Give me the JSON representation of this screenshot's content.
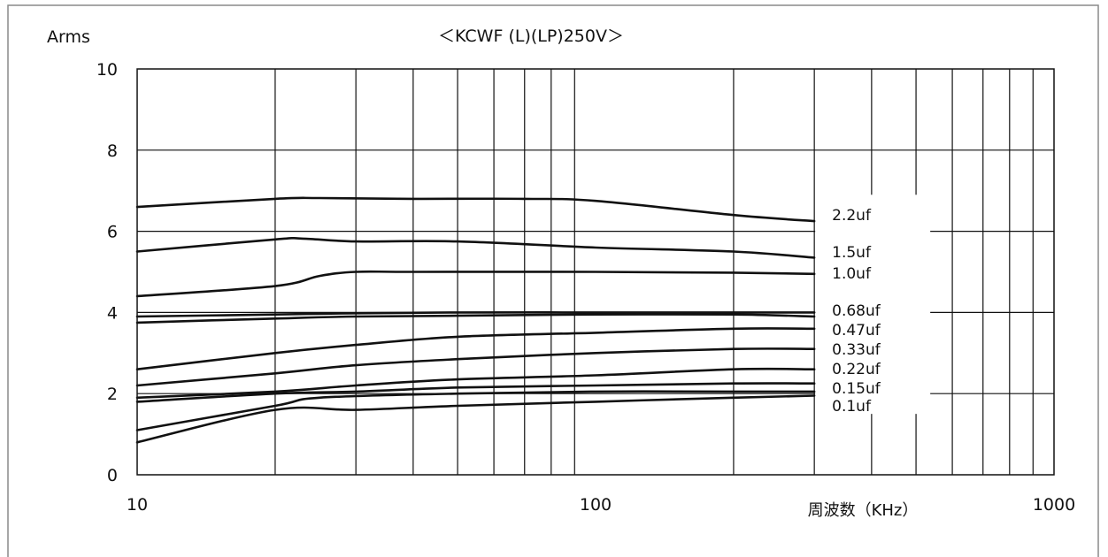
{
  "chart_data": {
    "type": "line",
    "title": "＜KCWF (L)(LP)250V＞",
    "xlabel": "周波数（KHz）",
    "ylabel": "Arms",
    "x_scale": "log",
    "xlim": [
      10,
      1000
    ],
    "ylim": [
      0,
      10
    ],
    "x_ticks": [
      10,
      100,
      1000
    ],
    "x_tick_labels": [
      "10",
      "100",
      "1000"
    ],
    "y_ticks": [
      0,
      2,
      4,
      6,
      8,
      10
    ],
    "y_tick_labels": [
      "0",
      "2",
      "4",
      "6",
      "8",
      "10"
    ],
    "grid": true,
    "legend": "inline labels at right end of each curve",
    "line_color": "#111111",
    "series": [
      {
        "name": "2.2uf",
        "x": [
          10,
          20,
          25,
          40,
          70,
          100,
          200,
          300
        ],
        "y": [
          6.6,
          6.8,
          6.82,
          6.8,
          6.8,
          6.75,
          6.4,
          6.25
        ]
      },
      {
        "name": "1.5uf",
        "x": [
          10,
          20,
          23,
          30,
          50,
          100,
          200,
          300
        ],
        "y": [
          5.5,
          5.8,
          5.82,
          5.75,
          5.75,
          5.6,
          5.5,
          5.35
        ]
      },
      {
        "name": "1.0uf",
        "x": [
          10,
          20,
          25,
          30,
          40,
          100,
          200,
          300
        ],
        "y": [
          4.4,
          4.65,
          4.9,
          5.0,
          5.0,
          5.0,
          4.98,
          4.95
        ]
      },
      {
        "name": "0.68uf",
        "x": [
          10,
          20,
          30,
          50,
          100,
          200,
          300
        ],
        "y": [
          3.9,
          3.95,
          3.98,
          4.0,
          4.0,
          4.0,
          4.0
        ]
      },
      {
        "name": "0.47uf",
        "x": [
          10,
          20,
          30,
          50,
          100,
          200,
          300
        ],
        "y": [
          3.75,
          3.85,
          3.9,
          3.92,
          3.95,
          3.95,
          3.9
        ]
      },
      {
        "name": "0.33uf",
        "x": [
          10,
          20,
          30,
          50,
          100,
          200,
          300
        ],
        "y": [
          2.6,
          3.0,
          3.2,
          3.4,
          3.5,
          3.6,
          3.6
        ]
      },
      {
        "name": "0.22uf",
        "x": [
          10,
          20,
          30,
          50,
          100,
          200,
          300
        ],
        "y": [
          2.2,
          2.5,
          2.7,
          2.85,
          3.0,
          3.1,
          3.1
        ]
      },
      {
        "name": "0.15uf",
        "x": [
          10,
          20,
          30,
          50,
          100,
          200,
          300
        ],
        "y": [
          1.9,
          2.05,
          2.2,
          2.35,
          2.45,
          2.6,
          2.6
        ]
      },
      {
        "name": "0.1uf",
        "x": [
          10,
          20,
          30,
          50,
          100,
          200,
          300
        ],
        "y": [
          1.8,
          2.0,
          2.05,
          2.15,
          2.2,
          2.25,
          2.25
        ]
      },
      {
        "name": "",
        "x": [
          10,
          20,
          25,
          50,
          100,
          200,
          300
        ],
        "y": [
          1.1,
          1.7,
          1.9,
          2.0,
          2.05,
          2.05,
          2.05
        ]
      },
      {
        "name": "",
        "x": [
          10,
          20,
          30,
          50,
          100,
          200,
          300
        ],
        "y": [
          0.8,
          1.6,
          1.6,
          1.7,
          1.8,
          1.9,
          1.95
        ]
      }
    ]
  }
}
